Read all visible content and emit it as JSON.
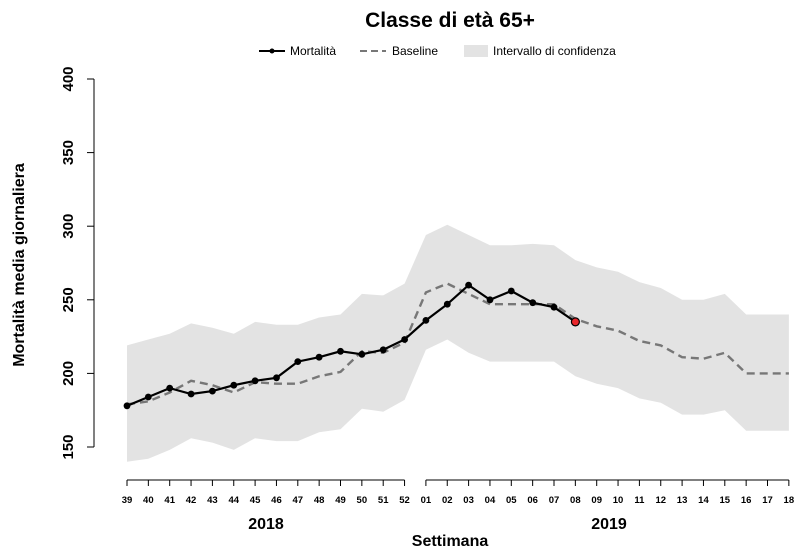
{
  "chart_data": {
    "type": "line",
    "title": "Classe di età 65+",
    "xlabel": "Settimana",
    "ylabel": "Mortalità media giornaliera",
    "ylim": [
      150,
      400
    ],
    "yticks": [
      150,
      200,
      250,
      300,
      350,
      400
    ],
    "years": [
      "2018",
      "2019"
    ],
    "legend_position": "top-center",
    "categories": [
      "39",
      "40",
      "41",
      "42",
      "43",
      "44",
      "45",
      "46",
      "47",
      "48",
      "49",
      "50",
      "51",
      "52",
      "01",
      "02",
      "03",
      "04",
      "05",
      "06",
      "07",
      "08",
      "09",
      "10",
      "11",
      "12",
      "13",
      "14",
      "15",
      "16",
      "17",
      "18"
    ],
    "series": [
      {
        "name": "Mortalità",
        "style": "line-points",
        "color": "#000000",
        "values": [
          178,
          184,
          190,
          186,
          188,
          192,
          195,
          197,
          208,
          211,
          215,
          213,
          216,
          223,
          236,
          247,
          260,
          250,
          256,
          248,
          245,
          235,
          null,
          null,
          null,
          null,
          null,
          null,
          null,
          null,
          null,
          null
        ]
      },
      {
        "name": "Baseline",
        "style": "dashed",
        "color": "#777777",
        "values": [
          179,
          181,
          187,
          195,
          192,
          187,
          194,
          193,
          193,
          198,
          201,
          215,
          214,
          221,
          255,
          261,
          254,
          247,
          247,
          247,
          247,
          237,
          232,
          229,
          222,
          219,
          211,
          210,
          214,
          200,
          200,
          200
        ]
      }
    ],
    "band": {
      "name": "Intervallo di confidenza",
      "color": "#e3e3e3",
      "upper": [
        219,
        223,
        227,
        234,
        231,
        227,
        235,
        233,
        233,
        238,
        240,
        254,
        253,
        261,
        294,
        301,
        294,
        287,
        287,
        288,
        287,
        277,
        272,
        269,
        262,
        258,
        250,
        250,
        254,
        240,
        240,
        240
      ],
      "lower": [
        140,
        142,
        148,
        156,
        153,
        148,
        156,
        154,
        154,
        160,
        162,
        176,
        174,
        182,
        216,
        223,
        214,
        208,
        208,
        208,
        208,
        198,
        193,
        190,
        183,
        180,
        172,
        172,
        175,
        161,
        161,
        161
      ]
    },
    "highlight_point": {
      "category": "08",
      "value": 235,
      "color": "#e8262b"
    }
  }
}
